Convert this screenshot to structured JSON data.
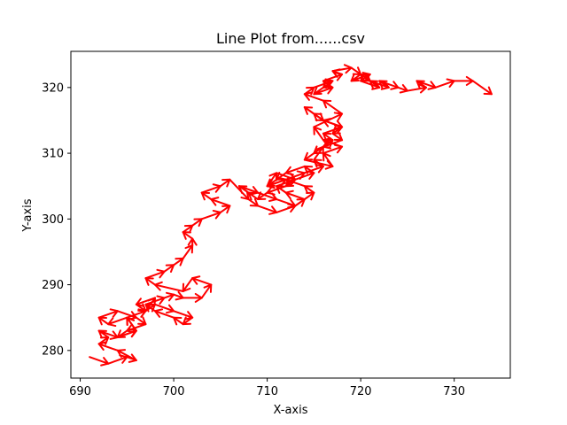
{
  "chart_data": {
    "type": "line",
    "title": "Line Plot from......csv",
    "xlabel": "X-axis",
    "ylabel": "Y-axis",
    "xlim": [
      689,
      736
    ],
    "ylim": [
      275.8,
      325.5
    ],
    "xticks": [
      690,
      700,
      710,
      720,
      730
    ],
    "yticks": [
      280,
      290,
      300,
      310,
      320
    ],
    "grid": false,
    "series": [
      {
        "color": "#1f77b4",
        "arrow_color": "#ff0000",
        "x": [
          691,
          693,
          695,
          696,
          694,
          692,
          693,
          692,
          694,
          696,
          695,
          693,
          692,
          694,
          696,
          697,
          695,
          694,
          696,
          695,
          697,
          698,
          696,
          697,
          698,
          700,
          702,
          701,
          700,
          698,
          697,
          699,
          700,
          701,
          703,
          704,
          702,
          701,
          698,
          697,
          699,
          700,
          701,
          702,
          702,
          701,
          702,
          703,
          705,
          706,
          704,
          703,
          705,
          706,
          708,
          709,
          711,
          713,
          715,
          714,
          712,
          710,
          711,
          713,
          712,
          710,
          709,
          708,
          707,
          709,
          711,
          713,
          714,
          712,
          711,
          713,
          715,
          714,
          712,
          711,
          710,
          712,
          714,
          716,
          715,
          716,
          717,
          716,
          718,
          716,
          715,
          714,
          716,
          718,
          717,
          718,
          716,
          715,
          714,
          717,
          716,
          718,
          716,
          715,
          718,
          716,
          714,
          715,
          717,
          716,
          715,
          717,
          716,
          718,
          717,
          719,
          720,
          719,
          721,
          720,
          722,
          721,
          720,
          721,
          723,
          722,
          724,
          725,
          727,
          726,
          728,
          730,
          732,
          734
        ],
        "y": [
          279,
          278,
          279,
          278.5,
          280,
          281,
          282,
          283,
          282,
          283,
          285,
          284,
          285,
          286,
          285,
          284,
          283,
          282,
          283,
          285,
          286,
          288,
          287,
          286,
          287,
          286,
          285,
          284,
          285,
          286,
          287,
          288,
          288.5,
          288,
          288,
          290,
          291,
          289,
          290,
          291,
          292,
          293,
          294,
          296,
          297,
          298,
          299,
          300,
          301,
          302,
          303,
          304,
          305,
          306,
          303,
          302,
          301,
          302,
          304,
          305,
          306,
          305,
          307,
          306,
          305,
          304,
          303,
          304,
          305,
          304,
          303,
          302,
          303,
          304,
          305,
          306,
          307,
          308,
          307,
          306,
          305,
          306,
          307,
          308,
          309,
          311,
          312,
          313,
          314,
          315,
          316,
          317,
          315,
          314,
          313,
          312,
          311,
          310,
          309,
          308,
          310,
          311,
          312,
          314,
          316,
          318,
          319,
          320,
          321,
          320,
          319,
          320,
          321,
          322,
          322.5,
          323,
          322,
          321,
          322,
          321,
          320,
          321,
          322,
          321,
          320,
          321,
          320,
          319.5,
          320,
          321,
          320,
          321,
          321,
          319
        ]
      }
    ]
  }
}
